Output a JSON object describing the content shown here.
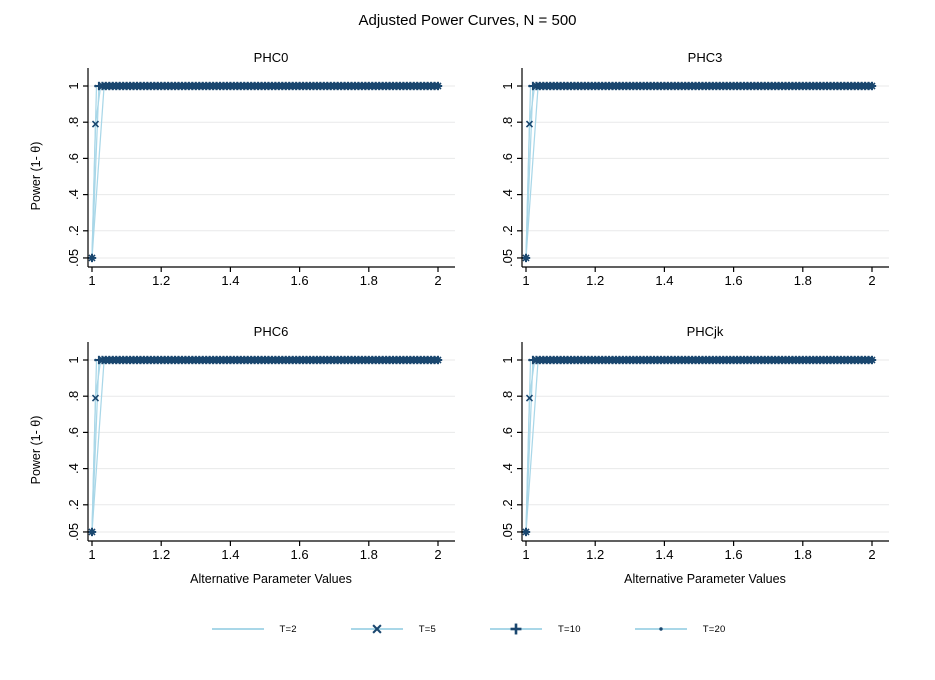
{
  "chart_data": {
    "type": "line",
    "title": "Adjusted Power Curves, N = 500",
    "xlabel": "Alternative Parameter Values",
    "ylabel": "Power (1- θ)",
    "xlim": [
      1,
      2
    ],
    "ylim": [
      0,
      1.09
    ],
    "x_ticks": [
      1,
      1.2,
      1.4,
      1.6,
      1.8,
      2
    ],
    "x_tick_labels": [
      "1",
      "1.2",
      "1.4",
      "1.6",
      "1.8",
      "2"
    ],
    "y_ticks": [
      0.05,
      0.2,
      0.4,
      0.6,
      0.8,
      1
    ],
    "y_tick_labels": [
      ".05",
      ".2",
      ".4",
      ".6",
      ".8",
      "1"
    ],
    "grid": "horizontal-only",
    "x_marker_step": 0.01,
    "panels": [
      {
        "title": "PHC0"
      },
      {
        "title": "PHC3"
      },
      {
        "title": "PHC6"
      },
      {
        "title": "PHCjk"
      }
    ],
    "panels_note": "All four panels show visually identical power curves: power = 0.05 at parameter value 1, rising to 1.0 by ~1.04 and staying at 1.0 through 2.0",
    "series": [
      {
        "name": "T=2",
        "marker": "none",
        "line": [
          [
            1,
            0.05
          ],
          [
            1.035,
            1
          ],
          [
            2,
            1
          ]
        ]
      },
      {
        "name": "T=5",
        "marker": "x",
        "line": [
          [
            1,
            0.05
          ],
          [
            1.01,
            0.79
          ],
          [
            1.025,
            1
          ],
          [
            2,
            1
          ]
        ],
        "rise_markers": [
          [
            1,
            0.05
          ],
          [
            1.01,
            0.79
          ]
        ],
        "plateau_from": 1.03,
        "plateau_value": 1
      },
      {
        "name": "T=10",
        "marker": "plus",
        "line": [
          [
            1,
            0.05
          ],
          [
            1.02,
            1
          ],
          [
            2,
            1
          ]
        ],
        "rise_markers": [
          [
            1,
            0.05
          ]
        ],
        "plateau_from": 1.02,
        "plateau_value": 1
      },
      {
        "name": "T=20",
        "marker": "dot",
        "line": [
          [
            1,
            0.05
          ],
          [
            1.013,
            1
          ],
          [
            2,
            1
          ]
        ],
        "rise_markers": [
          [
            1,
            0.05
          ]
        ],
        "plateau_from": 1.01,
        "plateau_value": 1
      }
    ],
    "legend_position": "bottom-center",
    "colors": {
      "line": "#a9d7e8",
      "marker": "#1a476f",
      "grid": "#e8e9ea",
      "axis": "#000000",
      "background": "#ffffff"
    }
  }
}
